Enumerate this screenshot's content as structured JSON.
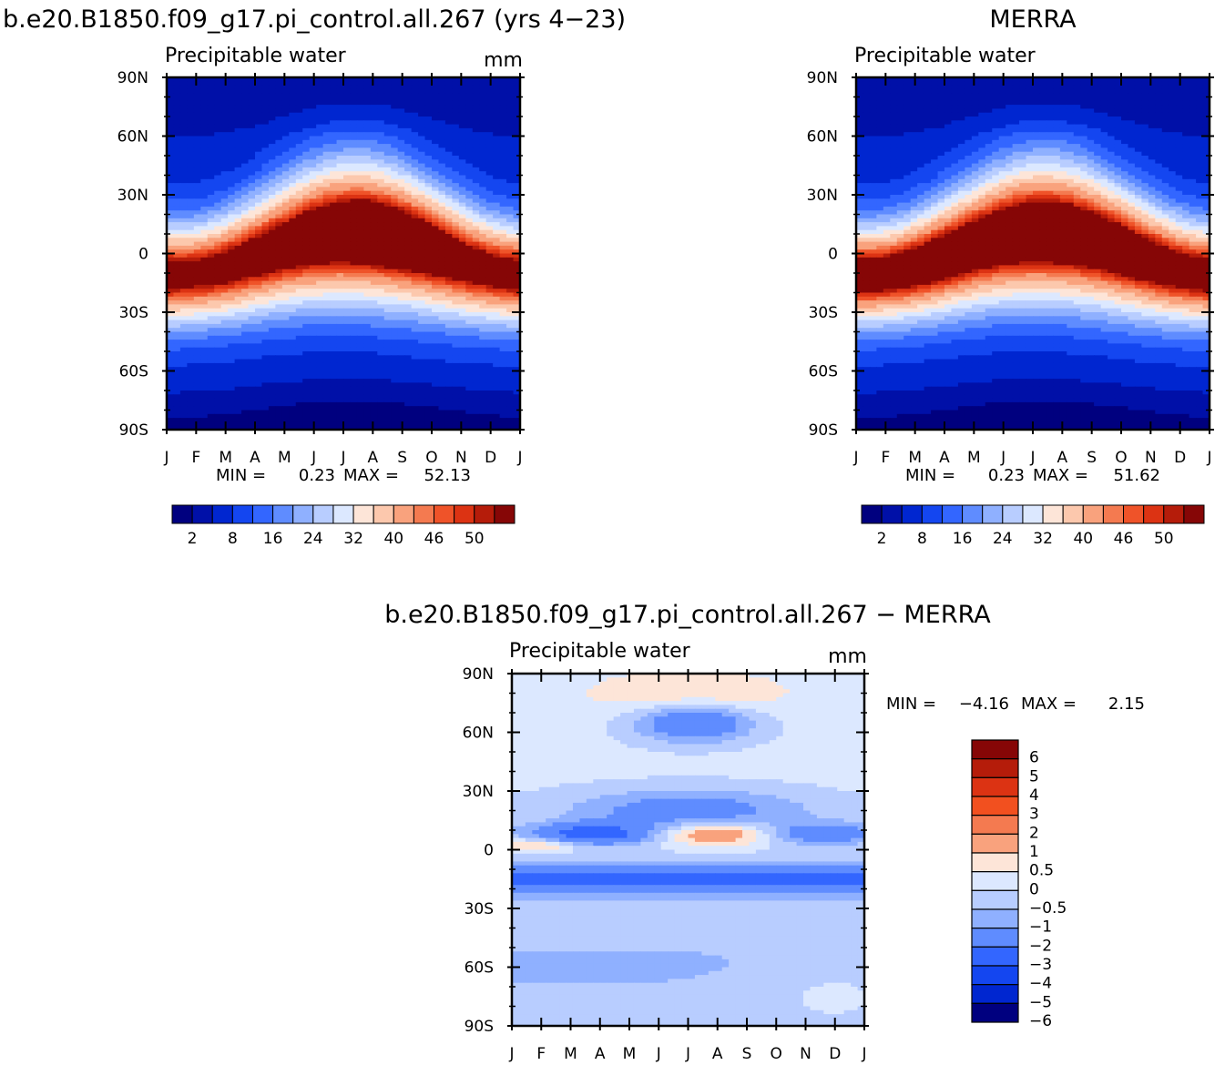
{
  "chart_data": [
    {
      "id": "model",
      "type": "heatmap",
      "title": "b.e20.B1850.f09_g17.pi_control.all.267 (yrs 4−23)",
      "subtitle": "Precipitable water",
      "units": "mm",
      "x_ticks": [
        "J",
        "F",
        "M",
        "A",
        "M",
        "J",
        "J",
        "A",
        "S",
        "O",
        "N",
        "D",
        "J"
      ],
      "y_ticks": [
        "90N",
        "60N",
        "30N",
        "0",
        "30S",
        "60S",
        "90S"
      ],
      "stats": {
        "min_label": "MIN =",
        "min": "0.23",
        "max_label": "MAX =",
        "max": "52.13"
      },
      "colorbar": {
        "colors": [
          "#00007f",
          "#0010a8",
          "#0026d0",
          "#1446f0",
          "#3366ff",
          "#5f8cff",
          "#8fb0ff",
          "#b8cdff",
          "#dce8ff",
          "#fde5d8",
          "#fcc8ad",
          "#f9a27d",
          "#f47a50",
          "#ef5329",
          "#dc3313",
          "#b51c0a",
          "#860606"
        ],
        "labels": [
          "2",
          "8",
          "16",
          "24",
          "32",
          "40",
          "46",
          "50"
        ]
      },
      "field": {
        "max_lat": 9,
        "pole_n": 4,
        "pole_s": 1.5,
        "seasonal_shift": 11,
        "months": [
          "Jan",
          "Feb",
          "Mar",
          "Apr",
          "May",
          "Jun",
          "Jul",
          "Aug",
          "Sep",
          "Oct",
          "Nov",
          "Dec",
          "Jan"
        ],
        "peak_by_month": [
          46,
          45,
          46,
          47,
          48,
          50,
          51,
          52,
          51,
          49,
          47,
          46,
          46
        ]
      }
    },
    {
      "id": "obs",
      "type": "heatmap",
      "title": "MERRA",
      "subtitle": "Precipitable water",
      "units": "",
      "x_ticks": [
        "J",
        "F",
        "M",
        "A",
        "M",
        "J",
        "J",
        "A",
        "S",
        "O",
        "N",
        "D",
        "J"
      ],
      "y_ticks": [
        "90N",
        "60N",
        "30N",
        "0",
        "30S",
        "60S",
        "90S"
      ],
      "stats": {
        "min_label": "MIN =",
        "min": "0.23",
        "max_label": "MAX =",
        "max": "51.62"
      },
      "colorbar": {
        "colors": [
          "#00007f",
          "#0010a8",
          "#0026d0",
          "#1446f0",
          "#3366ff",
          "#5f8cff",
          "#8fb0ff",
          "#b8cdff",
          "#dce8ff",
          "#fde5d8",
          "#fcc8ad",
          "#f9a27d",
          "#f47a50",
          "#ef5329",
          "#dc3313",
          "#b51c0a",
          "#860606"
        ],
        "labels": [
          "2",
          "8",
          "16",
          "24",
          "32",
          "40",
          "46",
          "50"
        ]
      },
      "field": {
        "max_lat": 8,
        "pole_n": 3,
        "pole_s": 1.2,
        "seasonal_shift": 11,
        "months": [
          "Jan",
          "Feb",
          "Mar",
          "Apr",
          "May",
          "Jun",
          "Jul",
          "Aug",
          "Sep",
          "Oct",
          "Nov",
          "Dec",
          "Jan"
        ],
        "peak_by_month": [
          47,
          47,
          48,
          49,
          49,
          50,
          51,
          51,
          50,
          49,
          48,
          47,
          47
        ]
      }
    },
    {
      "id": "diff",
      "type": "heatmap",
      "title": "b.e20.B1850.f09_g17.pi_control.all.267 − MERRA",
      "subtitle": "Precipitable water",
      "units": "mm",
      "x_ticks": [
        "J",
        "F",
        "M",
        "A",
        "M",
        "J",
        "J",
        "A",
        "S",
        "O",
        "N",
        "D",
        "J"
      ],
      "y_ticks": [
        "90N",
        "60N",
        "30N",
        "0",
        "30S",
        "60S",
        "90S"
      ],
      "stats": {
        "min_label": "MIN =",
        "min": "−4.16",
        "max_label": "MAX =",
        "max": "2.15"
      },
      "colorbar": {
        "colors": [
          "#860606",
          "#b51c0a",
          "#dc3313",
          "#f2501f",
          "#f47a50",
          "#f9a27d",
          "#fde5d8",
          "#dce8ff",
          "#b8cdff",
          "#8fb0ff",
          "#5f8cff",
          "#3366ff",
          "#1446f0",
          "#0026d0",
          "#00007f"
        ],
        "labels": [
          "6",
          "5",
          "4",
          "3",
          "2",
          "1",
          "0.5",
          "0",
          "−0.5",
          "−1",
          "−2",
          "−3",
          "−4",
          "−5",
          "−6"
        ]
      }
    }
  ]
}
